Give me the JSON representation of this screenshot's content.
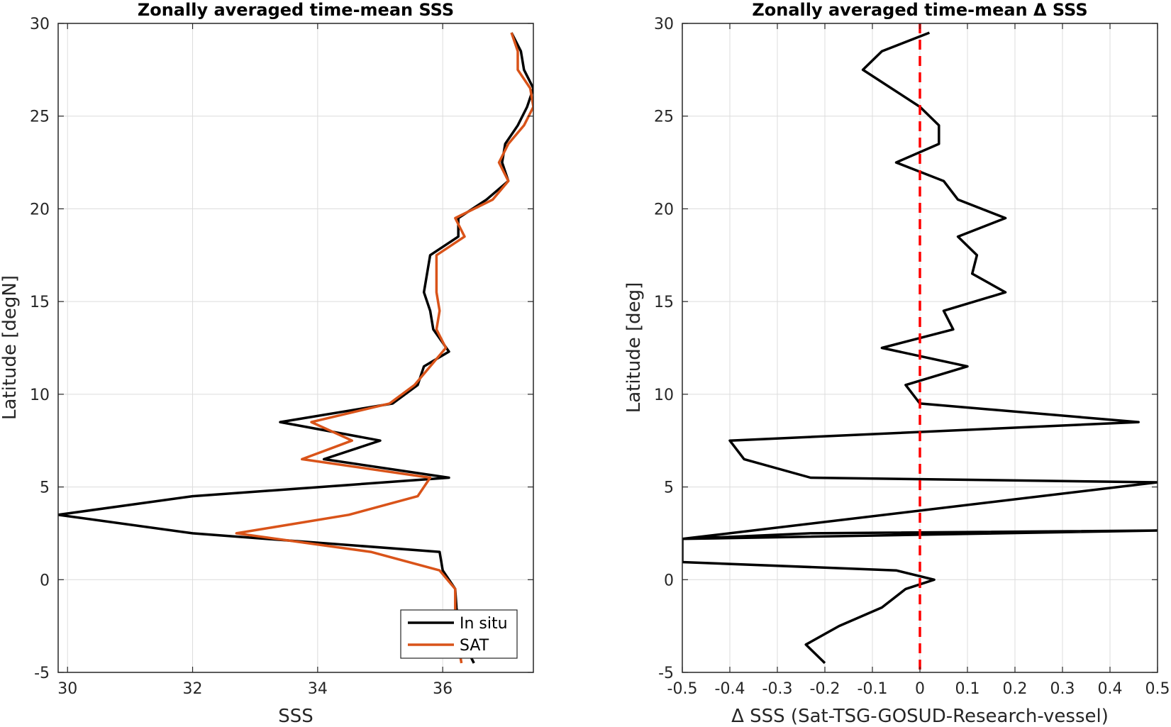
{
  "chart_data": [
    {
      "type": "line",
      "title": "Zonally averaged time-mean SSS",
      "xlabel": "SSS",
      "ylabel": "Latitude [degN]",
      "xlim": [
        29.85,
        37.45
      ],
      "ylim": [
        -5,
        30
      ],
      "xticks": [
        30,
        32,
        34,
        36
      ],
      "yticks": [
        -5,
        0,
        5,
        10,
        15,
        20,
        25,
        30
      ],
      "grid": true,
      "legend": "bottom-right",
      "series": [
        {
          "name": "In situ",
          "color": "#000000",
          "points": [
            [
              36.5,
              -4.5
            ],
            [
              36.35,
              -3.5
            ],
            [
              36.25,
              -2.5
            ],
            [
              36.22,
              -1.5
            ],
            [
              36.2,
              -0.5
            ],
            [
              36.0,
              0.5
            ],
            [
              35.95,
              1.5
            ],
            [
              32.0,
              2.5
            ],
            [
              29.85,
              3.5
            ],
            [
              32.0,
              4.5
            ],
            [
              36.1,
              5.5
            ],
            [
              34.1,
              6.5
            ],
            [
              35.0,
              7.5
            ],
            [
              33.4,
              8.5
            ],
            [
              35.2,
              9.5
            ],
            [
              35.6,
              10.5
            ],
            [
              35.7,
              11.5
            ],
            [
              36.1,
              12.3
            ],
            [
              35.85,
              13.5
            ],
            [
              35.8,
              14.5
            ],
            [
              35.7,
              15.5
            ],
            [
              35.75,
              16.5
            ],
            [
              35.8,
              17.5
            ],
            [
              36.25,
              18.5
            ],
            [
              36.25,
              19.5
            ],
            [
              36.7,
              20.5
            ],
            [
              37.05,
              21.5
            ],
            [
              36.95,
              22.5
            ],
            [
              37.0,
              23.5
            ],
            [
              37.2,
              24.5
            ],
            [
              37.35,
              25.5
            ],
            [
              37.45,
              26.5
            ],
            [
              37.3,
              27.5
            ],
            [
              37.25,
              28.5
            ],
            [
              37.1,
              29.5
            ]
          ]
        },
        {
          "name": "SAT",
          "color": "#D95319",
          "points": [
            [
              36.3,
              -4.5
            ],
            [
              36.25,
              -3.5
            ],
            [
              36.2,
              -2.5
            ],
            [
              36.2,
              -1.5
            ],
            [
              36.2,
              -0.5
            ],
            [
              35.95,
              0.5
            ],
            [
              34.85,
              1.5
            ],
            [
              32.7,
              2.5
            ],
            [
              34.5,
              3.5
            ],
            [
              35.6,
              4.5
            ],
            [
              35.8,
              5.5
            ],
            [
              33.75,
              6.5
            ],
            [
              34.55,
              7.5
            ],
            [
              33.9,
              8.5
            ],
            [
              35.15,
              9.5
            ],
            [
              35.55,
              10.5
            ],
            [
              35.8,
              11.5
            ],
            [
              36.05,
              12.5
            ],
            [
              35.9,
              13.5
            ],
            [
              35.95,
              14.5
            ],
            [
              35.9,
              15.5
            ],
            [
              35.9,
              16.5
            ],
            [
              35.9,
              17.5
            ],
            [
              36.35,
              18.5
            ],
            [
              36.2,
              19.5
            ],
            [
              36.8,
              20.5
            ],
            [
              37.05,
              21.5
            ],
            [
              36.9,
              22.5
            ],
            [
              37.05,
              23.5
            ],
            [
              37.3,
              24.5
            ],
            [
              37.45,
              25.5
            ],
            [
              37.4,
              26.5
            ],
            [
              37.2,
              27.5
            ],
            [
              37.2,
              28.5
            ],
            [
              37.1,
              29.5
            ]
          ]
        }
      ]
    },
    {
      "type": "line",
      "title": "Zonally averaged time-mean Δ SSS",
      "xlabel": "Δ SSS (Sat-TSG-GOSUD-Research-vessel)",
      "ylabel": "Latitude [deg]",
      "xlim": [
        -0.5,
        0.5
      ],
      "ylim": [
        -5,
        30
      ],
      "xticks": [
        -0.5,
        -0.4,
        -0.3,
        -0.2,
        -0.1,
        0,
        0.1,
        0.2,
        0.3,
        0.4,
        0.5
      ],
      "xticklabels": [
        "-0.5",
        "-0.4",
        "-0.3",
        "-0.2",
        "-0.1",
        "0",
        "0.1",
        "0.2",
        "0.3",
        "0.4",
        "0.5"
      ],
      "yticks": [
        -5,
        0,
        5,
        10,
        15,
        20,
        25,
        30
      ],
      "grid": true,
      "reference_line": {
        "x": 0,
        "color": "#FF0000",
        "style": "dashed"
      },
      "series": [
        {
          "color": "#000000",
          "points": [
            [
              -0.2,
              -4.5
            ],
            [
              -0.24,
              -3.5
            ],
            [
              -0.17,
              -2.5
            ],
            [
              -0.08,
              -1.5
            ],
            [
              -0.03,
              -0.5
            ],
            [
              0.03,
              0.0
            ],
            [
              -0.05,
              0.5
            ],
            [
              -0.5,
              0.95
            ],
            [
              -0.5,
              2.2
            ],
            [
              0.5,
              2.65
            ],
            [
              -0.23,
              2.5
            ],
            [
              -0.5,
              2.2
            ],
            [
              0.5,
              5.25
            ],
            [
              -0.23,
              5.5
            ],
            [
              -0.37,
              6.5
            ],
            [
              -0.4,
              7.5
            ],
            [
              0.46,
              8.5
            ],
            [
              0.0,
              9.5
            ],
            [
              -0.03,
              10.5
            ],
            [
              0.1,
              11.5
            ],
            [
              -0.08,
              12.5
            ],
            [
              0.07,
              13.5
            ],
            [
              0.05,
              14.5
            ],
            [
              0.18,
              15.5
            ],
            [
              0.11,
              16.5
            ],
            [
              0.12,
              17.5
            ],
            [
              0.08,
              18.5
            ],
            [
              0.18,
              19.5
            ],
            [
              0.08,
              20.5
            ],
            [
              0.05,
              21.5
            ],
            [
              -0.05,
              22.5
            ],
            [
              0.04,
              23.5
            ],
            [
              0.04,
              24.5
            ],
            [
              0.0,
              25.5
            ],
            [
              -0.12,
              27.5
            ],
            [
              -0.08,
              28.5
            ],
            [
              0.02,
              29.5
            ]
          ]
        }
      ]
    }
  ]
}
